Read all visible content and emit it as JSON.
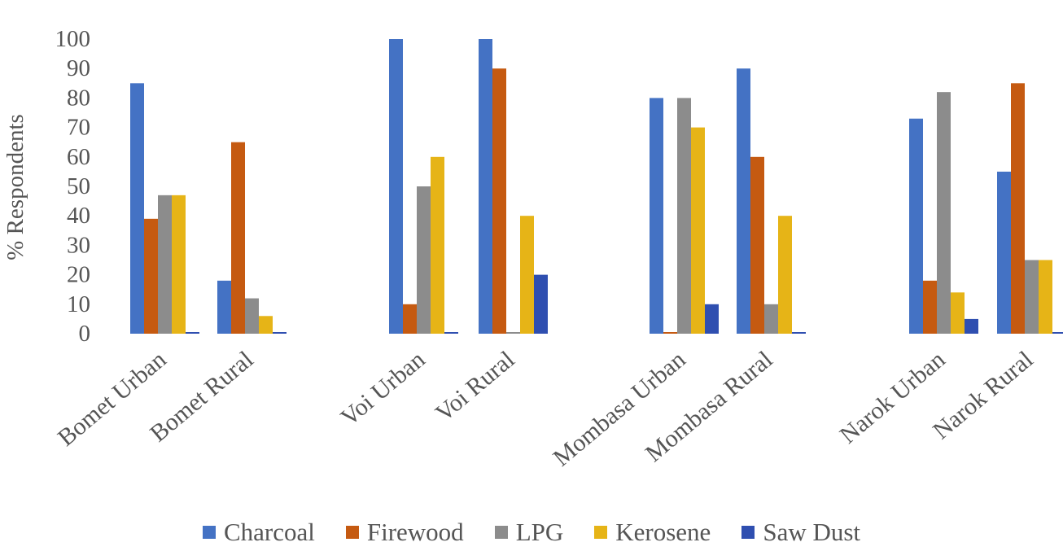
{
  "chart_data": {
    "type": "bar",
    "title": "",
    "xlabel": "",
    "ylabel": "% Respondents",
    "ylim": [
      0,
      100
    ],
    "yticks": [
      0,
      10,
      20,
      30,
      40,
      50,
      60,
      70,
      80,
      90,
      100
    ],
    "grid": false,
    "legend_position": "bottom",
    "categories": [
      "Bomet Urban",
      "Bomet Rural",
      "Voi Urban",
      "Voi Rural",
      "Mombasa Urban",
      "Mombasa Rural",
      "Narok Urban",
      "Narok Rural"
    ],
    "series": [
      {
        "name": "Charcoal",
        "color": "#4472C4",
        "values": [
          85,
          18,
          100,
          100,
          80,
          90,
          73,
          55
        ]
      },
      {
        "name": "Firewood",
        "color": "#C55A11",
        "values": [
          39,
          65,
          10,
          90,
          0,
          60,
          18,
          85
        ]
      },
      {
        "name": "LPG",
        "color": "#8C8C8C",
        "values": [
          47,
          12,
          50,
          0,
          80,
          10,
          82,
          25
        ]
      },
      {
        "name": "Kerosene",
        "color": "#E6B417",
        "values": [
          47,
          6,
          60,
          40,
          70,
          40,
          14,
          25
        ]
      },
      {
        "name": "Saw Dust",
        "color": "#2F4FB0",
        "values": [
          0,
          0,
          0,
          20,
          10,
          0,
          5,
          0
        ]
      }
    ]
  }
}
